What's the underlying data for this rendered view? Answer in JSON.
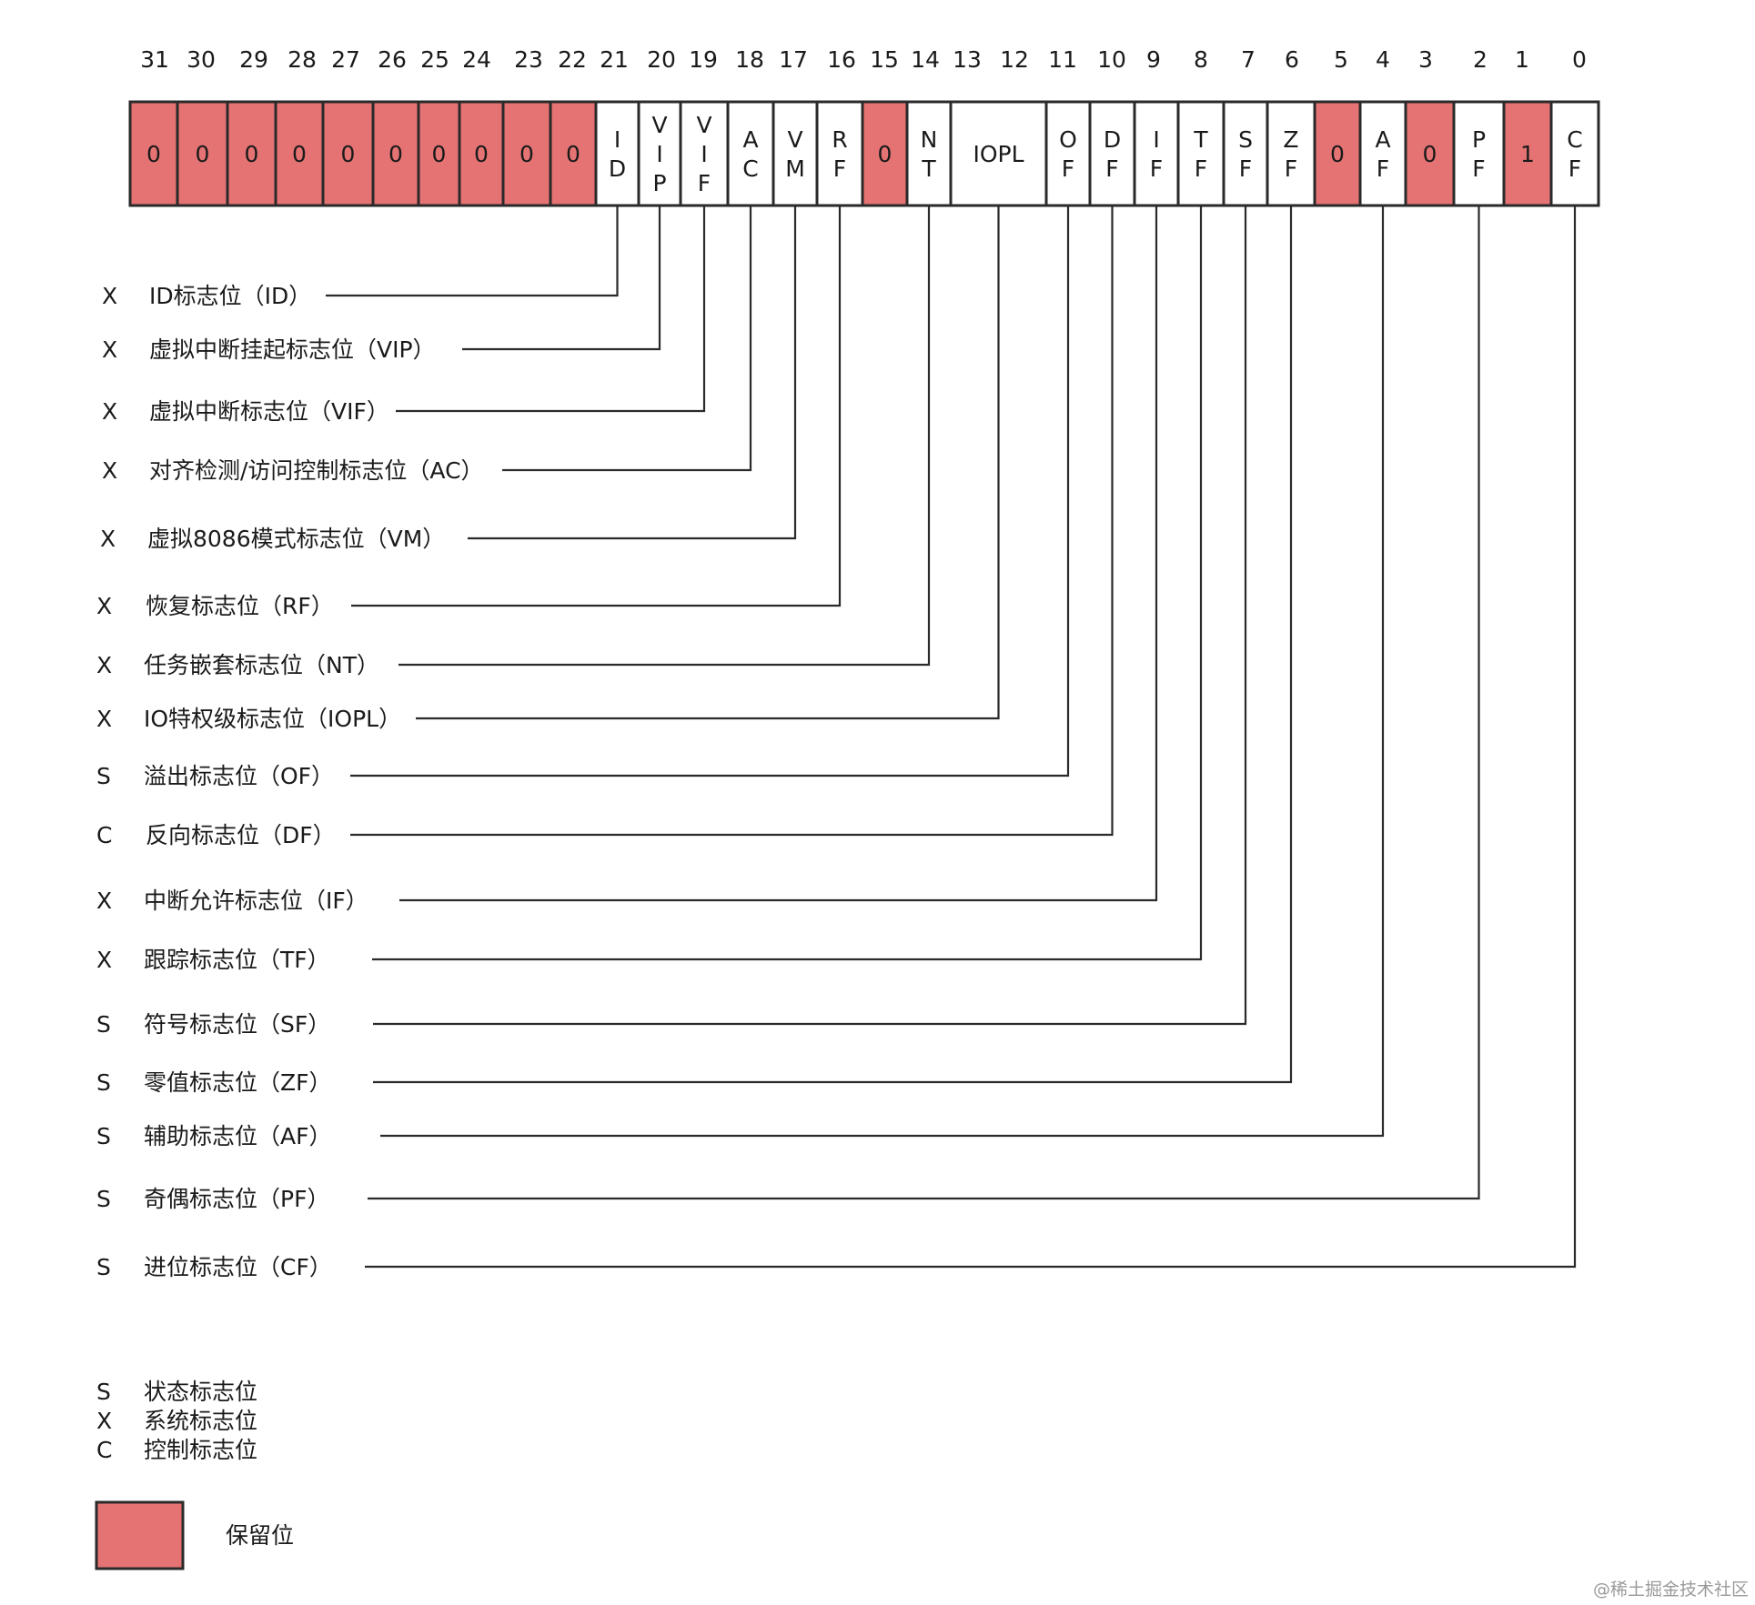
{
  "colors": {
    "reserved": "#e57373",
    "normal": "#ffffff",
    "border": "#2a2a2a",
    "line": "#2a2a2a",
    "text": "#1a1a1a",
    "watermark": "#9a9a9a"
  },
  "register": {
    "cells": [
      {
        "bits": "31",
        "lines": [
          "0"
        ],
        "reserved": true
      },
      {
        "bits": "30",
        "lines": [
          "0"
        ],
        "reserved": true
      },
      {
        "bits": "29",
        "lines": [
          "0"
        ],
        "reserved": true
      },
      {
        "bits": "28",
        "lines": [
          "0"
        ],
        "reserved": true
      },
      {
        "bits": "27",
        "lines": [
          "0"
        ],
        "reserved": true
      },
      {
        "bits": "26",
        "lines": [
          "0"
        ],
        "reserved": true
      },
      {
        "bits": "25",
        "lines": [
          "0"
        ],
        "reserved": true
      },
      {
        "bits": "24",
        "lines": [
          "0"
        ],
        "reserved": true
      },
      {
        "bits": "23",
        "lines": [
          "0"
        ],
        "reserved": true
      },
      {
        "bits": "22",
        "lines": [
          "0"
        ],
        "reserved": true
      },
      {
        "bits": "21",
        "lines": [
          "I",
          "D"
        ],
        "reserved": false
      },
      {
        "bits": "20",
        "lines": [
          "V",
          "I",
          "P"
        ],
        "reserved": false
      },
      {
        "bits": "19",
        "lines": [
          "V",
          "I",
          "F"
        ],
        "reserved": false
      },
      {
        "bits": "18",
        "lines": [
          "A",
          "C"
        ],
        "reserved": false
      },
      {
        "bits": "17",
        "lines": [
          "V",
          "M"
        ],
        "reserved": false
      },
      {
        "bits": "16",
        "lines": [
          "R",
          "F"
        ],
        "reserved": false
      },
      {
        "bits": "15",
        "lines": [
          "0"
        ],
        "reserved": true
      },
      {
        "bits": "14",
        "lines": [
          "N",
          "T"
        ],
        "reserved": false
      },
      {
        "bits": "13-12",
        "lines": [
          "IOPL"
        ],
        "reserved": false
      },
      {
        "bits": "11",
        "lines": [
          "O",
          "F"
        ],
        "reserved": false
      },
      {
        "bits": "10",
        "lines": [
          "D",
          "F"
        ],
        "reserved": false
      },
      {
        "bits": "9",
        "lines": [
          "I",
          "F"
        ],
        "reserved": false
      },
      {
        "bits": "8",
        "lines": [
          "T",
          "F"
        ],
        "reserved": false
      },
      {
        "bits": "7",
        "lines": [
          "S",
          "F"
        ],
        "reserved": false
      },
      {
        "bits": "6",
        "lines": [
          "Z",
          "F"
        ],
        "reserved": false
      },
      {
        "bits": "5",
        "lines": [
          "0"
        ],
        "reserved": true
      },
      {
        "bits": "4",
        "lines": [
          "A",
          "F"
        ],
        "reserved": false
      },
      {
        "bits": "3",
        "lines": [
          "0"
        ],
        "reserved": true
      },
      {
        "bits": "2",
        "lines": [
          "P",
          "F"
        ],
        "reserved": false
      },
      {
        "bits": "1",
        "lines": [
          "1"
        ],
        "reserved": true
      },
      {
        "bits": "0",
        "lines": [
          "C",
          "F"
        ],
        "reserved": false
      }
    ],
    "bit_numbers": [
      "31",
      "30",
      "29",
      "28",
      "27",
      "26",
      "25",
      "24",
      "23",
      "22",
      "21",
      "20",
      "19",
      "18",
      "17",
      "16",
      "15",
      "14",
      "13",
      "12",
      "11",
      "10",
      "9",
      "8",
      "7",
      "6",
      "5",
      "4",
      "3",
      "2",
      "1",
      "0"
    ]
  },
  "flags": [
    {
      "cat": "X",
      "label": "ID标志位（ID）",
      "bit": "21"
    },
    {
      "cat": "X",
      "label": "虚拟中断挂起标志位（VIP）",
      "bit": "20"
    },
    {
      "cat": "X",
      "label": "虚拟中断标志位（VIF）",
      "bit": "19"
    },
    {
      "cat": "X",
      "label": "对齐检测/访问控制标志位（AC）",
      "bit": "18"
    },
    {
      "cat": "X",
      "label": "虚拟8086模式标志位（VM）",
      "bit": "17"
    },
    {
      "cat": "X",
      "label": "恢复标志位（RF）",
      "bit": "16"
    },
    {
      "cat": "X",
      "label": "任务嵌套标志位（NT）",
      "bit": "14"
    },
    {
      "cat": "X",
      "label": "IO特权级标志位（IOPL）",
      "bit": "13-12"
    },
    {
      "cat": "S",
      "label": "溢出标志位（OF）",
      "bit": "11"
    },
    {
      "cat": "C",
      "label": "反向标志位（DF）",
      "bit": "10"
    },
    {
      "cat": "X",
      "label": "中断允许标志位（IF）",
      "bit": "9"
    },
    {
      "cat": "X",
      "label": "跟踪标志位（TF）",
      "bit": "8"
    },
    {
      "cat": "S",
      "label": "符号标志位（SF）",
      "bit": "7"
    },
    {
      "cat": "S",
      "label": "零值标志位（ZF）",
      "bit": "6"
    },
    {
      "cat": "S",
      "label": "辅助标志位（AF）",
      "bit": "4"
    },
    {
      "cat": "S",
      "label": "奇偶标志位（PF）",
      "bit": "2"
    },
    {
      "cat": "S",
      "label": "进位标志位（CF）",
      "bit": "0"
    }
  ],
  "legend": {
    "categories": [
      {
        "code": "S",
        "label": "状态标志位"
      },
      {
        "code": "X",
        "label": "系统标志位"
      },
      {
        "code": "C",
        "label": "控制标志位"
      }
    ],
    "reserved_label": "保留位"
  },
  "watermark": "@稀土掘金技术社区"
}
